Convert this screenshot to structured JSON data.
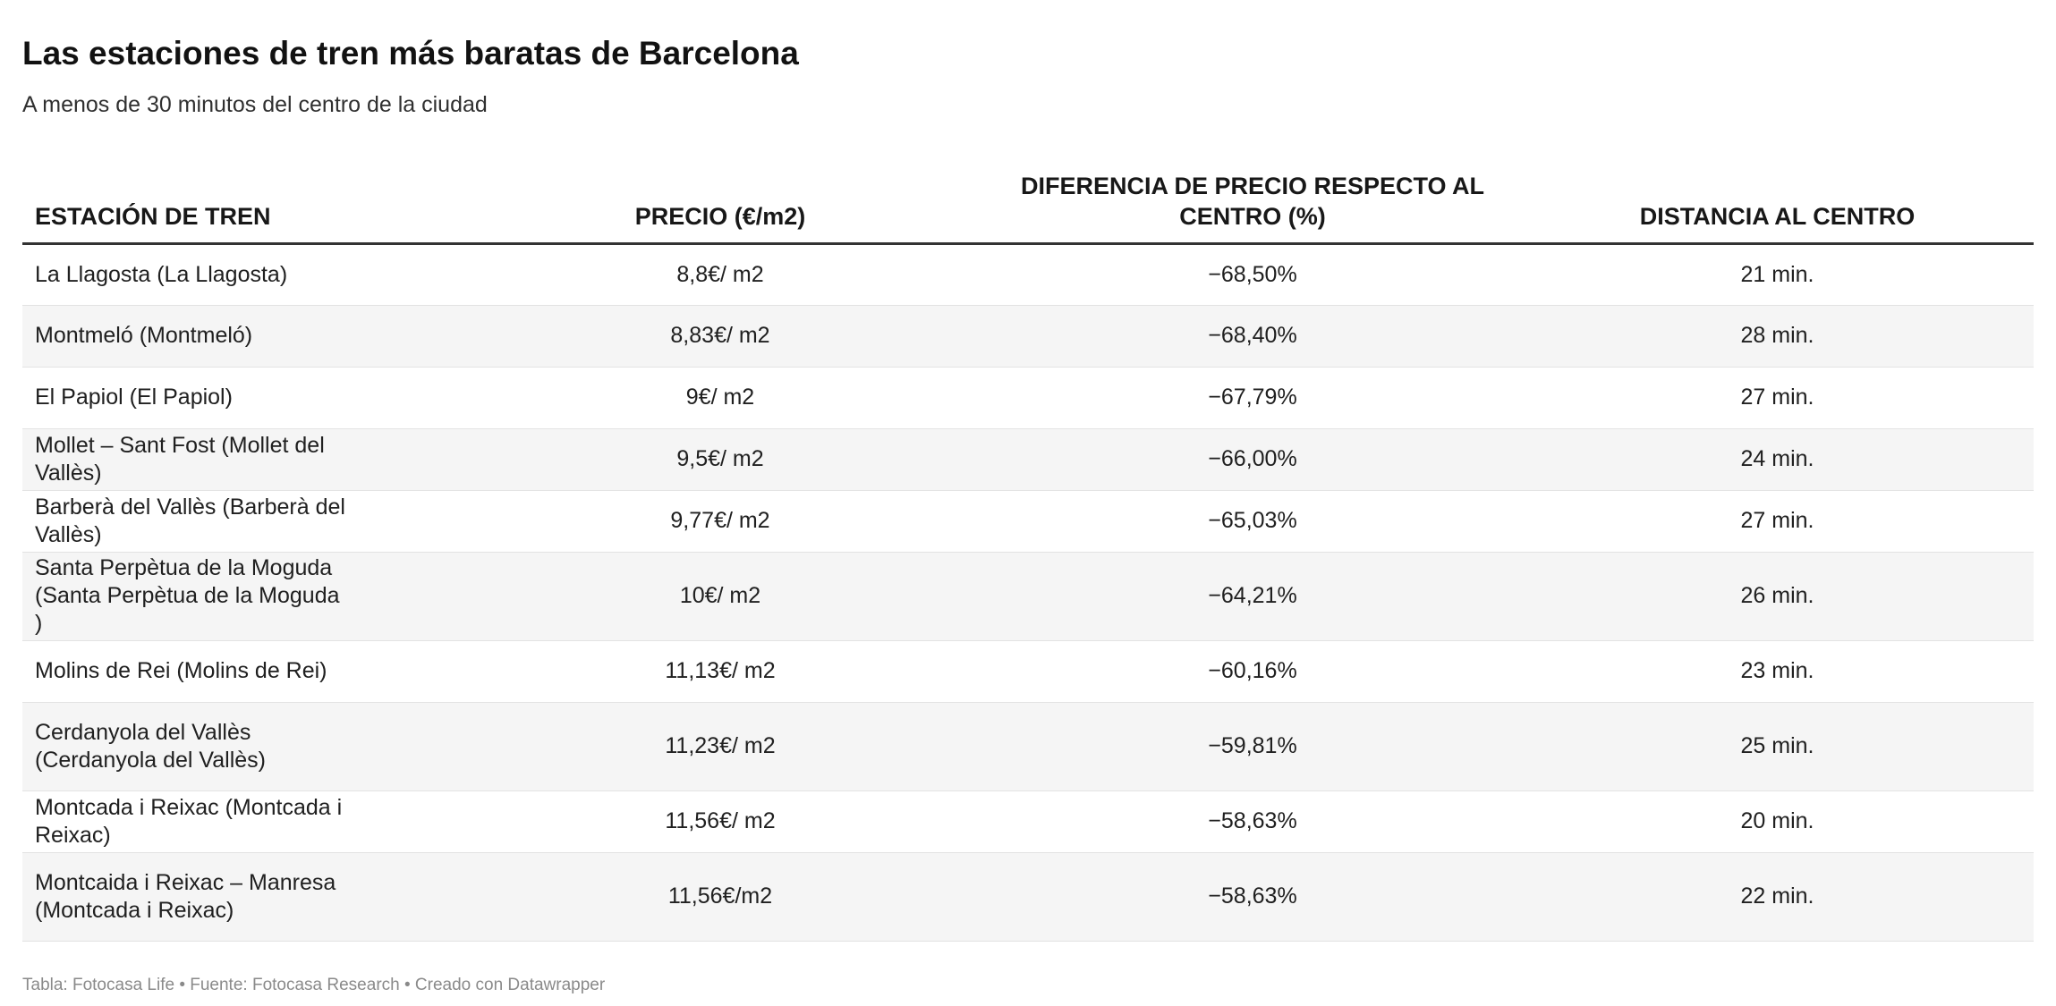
{
  "title": "Las estaciones de tren más baratas de Barcelona",
  "subtitle": "A menos de 30 minutos del centro de la ciudad",
  "columns": [
    "ESTACIÓN DE TREN",
    "PRECIO (€/m2)",
    "DIFERENCIA DE PRECIO RESPECTO AL CENTRO (%)",
    "DISTANCIA AL CENTRO"
  ],
  "rows": [
    {
      "station": "La Llagosta (La Llagosta)",
      "price": "8,8€/ m2",
      "diff": "−68,50%",
      "distance": "21 min."
    },
    {
      "station": "Montmeló (Montmeló)",
      "price": "8,83€/ m2",
      "diff": "−68,40%",
      "distance": "28 min."
    },
    {
      "station": "El Papiol (El Papiol)",
      "price": "9€/ m2",
      "diff": "−67,79%",
      "distance": "27 min."
    },
    {
      "station": "Mollet – Sant Fost (Mollet del Vallès)",
      "price": "9,5€/ m2",
      "diff": "−66,00%",
      "distance": "24 min."
    },
    {
      "station": "Barberà del Vallès (Barberà del Vallès)",
      "price": "9,77€/ m2",
      "diff": "−65,03%",
      "distance": "27 min."
    },
    {
      "station": "Santa Perpètua de la Moguda (Santa Perpètua de la Moguda )",
      "price": "10€/ m2",
      "diff": "−64,21%",
      "distance": "26 min."
    },
    {
      "station": "Molins de Rei (Molins de Rei)",
      "price": "11,13€/ m2",
      "diff": "−60,16%",
      "distance": "23 min."
    },
    {
      "station": "Cerdanyola del Vallès (Cerdanyola del Vallès)",
      "price": "11,23€/ m2",
      "diff": "−59,81%",
      "distance": "25 min."
    },
    {
      "station": "Montcada i Reixac (Montcada i Reixac)",
      "price": "11,56€/ m2",
      "diff": "−58,63%",
      "distance": "20 min."
    },
    {
      "station": "Montcaida i Reixac – Manresa (Montcada i Reixac)",
      "price": "11,56€/m2",
      "diff": "−58,63%",
      "distance": "22 min."
    }
  ],
  "footer": "Tabla: Fotocasa Life • Fuente: Fotocasa Research • Creado con Datawrapper",
  "colors": {
    "header_rule": "#333333",
    "row_alt": "#f5f5f5",
    "row_border": "#e3e3e3",
    "footer_text": "#8a8a8a"
  },
  "chart_data": {
    "type": "table",
    "title": "Las estaciones de tren más baratas de Barcelona",
    "subtitle": "A menos de 30 minutos del centro de la ciudad",
    "columns": [
      "ESTACIÓN DE TREN",
      "PRECIO (€/m2)",
      "DIFERENCIA DE PRECIO RESPECTO AL CENTRO (%)",
      "DISTANCIA AL CENTRO"
    ],
    "rows": [
      [
        "La Llagosta (La Llagosta)",
        "8,8€/ m2",
        "−68,50%",
        "21 min."
      ],
      [
        "Montmeló (Montmeló)",
        "8,83€/ m2",
        "−68,40%",
        "28 min."
      ],
      [
        "El Papiol (El Papiol)",
        "9€/ m2",
        "−67,79%",
        "27 min."
      ],
      [
        "Mollet – Sant Fost (Mollet del Vallès)",
        "9,5€/ m2",
        "−66,00%",
        "24 min."
      ],
      [
        "Barberà del Vallès (Barberà del Vallès)",
        "9,77€/ m2",
        "−65,03%",
        "27 min."
      ],
      [
        "Santa Perpètua de la Moguda (Santa Perpètua de la Moguda )",
        "10€/ m2",
        "−64,21%",
        "26 min."
      ],
      [
        "Molins de Rei (Molins de Rei)",
        "11,13€/ m2",
        "−60,16%",
        "23 min."
      ],
      [
        "Cerdanyola del Vallès (Cerdanyola del Vallès)",
        "11,23€/ m2",
        "−59,81%",
        "25 min."
      ],
      [
        "Montcada i Reixac (Montcada i Reixac)",
        "11,56€/ m2",
        "−58,63%",
        "20 min."
      ],
      [
        "Montcaida i Reixac – Manresa (Montcada i Reixac)",
        "11,56€/m2",
        "−58,63%",
        "22 min."
      ]
    ],
    "values": {
      "price_eur_m2": [
        8.8,
        8.83,
        9,
        9.5,
        9.77,
        10,
        11.13,
        11.23,
        11.56,
        11.56
      ],
      "diff_pct": [
        -68.5,
        -68.4,
        -67.79,
        -66.0,
        -65.03,
        -64.21,
        -60.16,
        -59.81,
        -58.63,
        -58.63
      ],
      "distance_min": [
        21,
        28,
        27,
        24,
        27,
        26,
        23,
        25,
        20,
        22
      ]
    }
  }
}
